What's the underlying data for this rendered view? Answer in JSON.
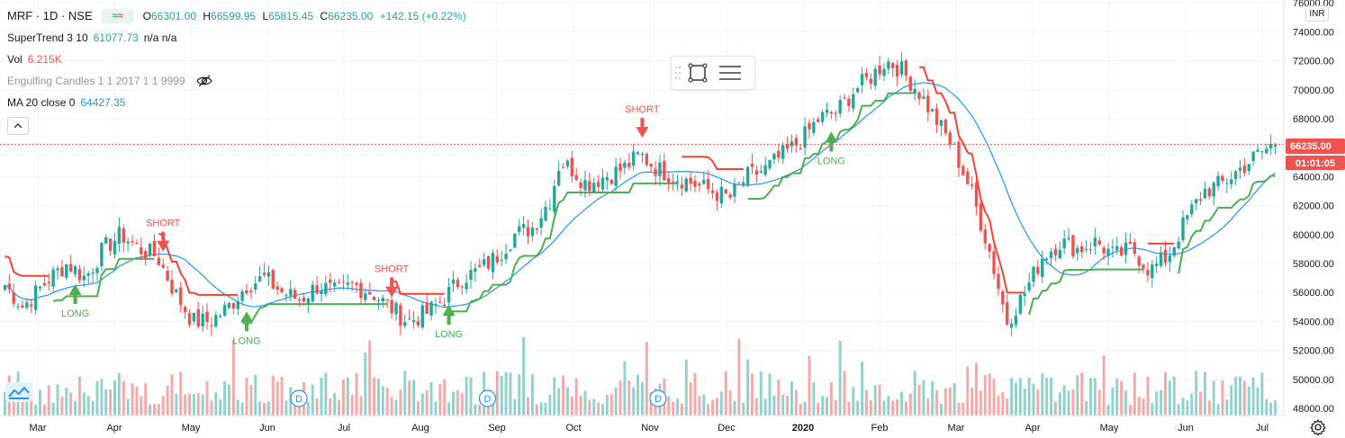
{
  "header": {
    "symbol": "MRF · 1D · NSE",
    "ohlc": {
      "o_label": "O",
      "o": "66301.00",
      "h_label": "H",
      "h": "66599.95",
      "l_label": "L",
      "l": "65815.45",
      "c_label": "C",
      "c": "66235.00",
      "change": "+142.15 (+0.22%)"
    }
  },
  "indicators": {
    "supertrend": {
      "label": "SuperTrend 3 10",
      "value": "61077.73",
      "extra": "n/a n/a"
    },
    "vol": {
      "label": "Vol",
      "value": "6.215K"
    },
    "engulfing": {
      "label": "Engulfing Candles 1 1 2017 1 1 9999"
    },
    "ma": {
      "label": "MA 20 close 0",
      "value": "64427.35"
    }
  },
  "currency": "INR",
  "price_label": "66235.00",
  "countdown_label": "01:01:05",
  "colors": {
    "up": "#26a69a",
    "down": "#ef5350",
    "ma": "#2196f3",
    "st_up": "#4caf50",
    "st_down": "#f44336",
    "grid": "#f0f3fa"
  },
  "icons": [
    "chart-logo-icon",
    "eye-off-icon",
    "rectangle-tool-icon",
    "settings-lines-icon",
    "gear-icon",
    "dividend-icon"
  ],
  "chart_data": {
    "type": "candlestick",
    "y_ticks": [
      "48000.00",
      "50000.00",
      "52000.00",
      "54000.00",
      "56000.00",
      "58000.00",
      "60000.00",
      "62000.00",
      "64000.00",
      "66000.00",
      "68000.00",
      "70000.00",
      "72000.00",
      "74000.00",
      "76000.00"
    ],
    "ylim": [
      47500,
      76200
    ],
    "x_labels": [
      "Mar",
      "Apr",
      "May",
      "Jun",
      "Jul",
      "Aug",
      "Sep",
      "Oct",
      "Nov",
      "Dec",
      "2020",
      "Feb",
      "Mar",
      "Apr",
      "May",
      "Jun",
      "Jul"
    ],
    "last_close": 66235,
    "signals": [
      {
        "text": "LONG",
        "kind": "long",
        "anchor": 0.08
      },
      {
        "text": "SHORT",
        "kind": "short",
        "anchor": 0.175
      },
      {
        "text": "LONG",
        "kind": "long",
        "anchor": 0.27
      },
      {
        "text": "SHORT",
        "kind": "short",
        "anchor": 0.43
      },
      {
        "text": "LONG",
        "kind": "long",
        "anchor": 0.495
      },
      {
        "text": "SHORT",
        "kind": "short",
        "anchor": 0.71
      },
      {
        "text": "LONG",
        "kind": "long",
        "anchor": 0.925
      }
    ],
    "dividend_marker": "D",
    "dividends": [
      0.33,
      0.54,
      0.73
    ],
    "anchors": [
      [
        0.0,
        56500
      ],
      [
        0.02,
        55000
      ],
      [
        0.05,
        57000
      ],
      [
        0.07,
        58000
      ],
      [
        0.09,
        57000
      ],
      [
        0.11,
        59000
      ],
      [
        0.13,
        60000
      ],
      [
        0.15,
        59000
      ],
      [
        0.17,
        58500
      ],
      [
        0.19,
        56000
      ],
      [
        0.21,
        54000
      ],
      [
        0.23,
        54000
      ],
      [
        0.25,
        55000
      ],
      [
        0.27,
        56500
      ],
      [
        0.29,
        57000
      ],
      [
        0.31,
        56000
      ],
      [
        0.33,
        55500
      ],
      [
        0.35,
        56500
      ],
      [
        0.37,
        56000
      ],
      [
        0.39,
        56500
      ],
      [
        0.41,
        56000
      ],
      [
        0.43,
        55000
      ],
      [
        0.45,
        54000
      ],
      [
        0.47,
        54500
      ],
      [
        0.49,
        55500
      ],
      [
        0.51,
        57000
      ],
      [
        0.53,
        57500
      ],
      [
        0.55,
        58500
      ],
      [
        0.57,
        60000
      ],
      [
        0.59,
        60500
      ],
      [
        0.61,
        62500
      ],
      [
        0.62,
        65000
      ],
      [
        0.635,
        64500
      ],
      [
        0.65,
        63500
      ],
      [
        0.67,
        64000
      ],
      [
        0.69,
        64500
      ],
      [
        0.71,
        65500
      ],
      [
        0.73,
        64500
      ],
      [
        0.75,
        64000
      ],
      [
        0.77,
        63500
      ],
      [
        0.79,
        63000
      ],
      [
        0.81,
        62500
      ],
      [
        0.83,
        64000
      ],
      [
        0.85,
        64500
      ],
      [
        0.87,
        65500
      ],
      [
        0.89,
        66500
      ],
      [
        0.91,
        68000
      ],
      [
        0.93,
        68500
      ],
      [
        0.95,
        70000
      ],
      [
        0.97,
        71000
      ],
      [
        0.985,
        72000
      ],
      [
        1.0,
        71500
      ],
      [
        1.02,
        70000
      ],
      [
        1.04,
        68000
      ],
      [
        1.06,
        66000
      ],
      [
        1.08,
        63000
      ],
      [
        1.1,
        59000
      ],
      [
        1.12,
        54000
      ],
      [
        1.14,
        56000
      ],
      [
        1.16,
        58500
      ],
      [
        1.18,
        59500
      ],
      [
        1.2,
        59000
      ],
      [
        1.22,
        59500
      ],
      [
        1.24,
        58500
      ],
      [
        1.26,
        59000
      ],
      [
        1.28,
        57500
      ],
      [
        1.3,
        58500
      ],
      [
        1.32,
        61000
      ],
      [
        1.34,
        63000
      ],
      [
        1.36,
        63500
      ],
      [
        1.38,
        64500
      ],
      [
        1.4,
        65500
      ],
      [
        1.42,
        66300
      ]
    ]
  }
}
